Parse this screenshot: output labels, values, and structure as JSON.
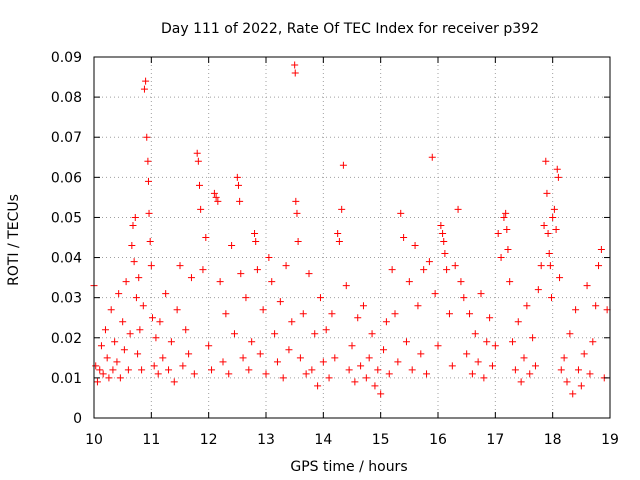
{
  "chart_data": {
    "type": "scatter",
    "title": "Day 111 of 2022, Rate Of TEC Index for receiver p392",
    "xlabel": "GPS time / hours",
    "ylabel": "ROTI / TECUs",
    "xlim": [
      10,
      19
    ],
    "ylim": [
      0,
      0.09
    ],
    "xticks": [
      10,
      11,
      12,
      13,
      14,
      15,
      16,
      17,
      18,
      19
    ],
    "yticks": [
      0,
      0.01,
      0.02,
      0.03,
      0.04,
      0.05,
      0.06,
      0.07,
      0.08,
      0.09
    ],
    "xtick_labels": [
      "10",
      "11",
      "12",
      "13",
      "14",
      "15",
      "16",
      "17",
      "18",
      "19"
    ],
    "ytick_labels": [
      "0",
      "0.01",
      "0.02",
      "0.03",
      "0.04",
      "0.05",
      "0.06",
      "0.07",
      "0.08",
      "0.09"
    ],
    "grid": true,
    "marker": "+",
    "series": [
      {
        "name": "ROTI",
        "color": "#ff0000",
        "points": [
          [
            10.0,
            0.033
          ],
          [
            10.03,
            0.013
          ],
          [
            10.06,
            0.009
          ],
          [
            10.1,
            0.012
          ],
          [
            10.13,
            0.018
          ],
          [
            10.16,
            0.011
          ],
          [
            10.2,
            0.022
          ],
          [
            10.23,
            0.015
          ],
          [
            10.26,
            0.01
          ],
          [
            10.3,
            0.027
          ],
          [
            10.33,
            0.012
          ],
          [
            10.36,
            0.019
          ],
          [
            10.4,
            0.014
          ],
          [
            10.43,
            0.031
          ],
          [
            10.46,
            0.01
          ],
          [
            10.5,
            0.024
          ],
          [
            10.53,
            0.017
          ],
          [
            10.56,
            0.034
          ],
          [
            10.6,
            0.012
          ],
          [
            10.63,
            0.021
          ],
          [
            10.66,
            0.043
          ],
          [
            10.68,
            0.048
          ],
          [
            10.7,
            0.039
          ],
          [
            10.72,
            0.05
          ],
          [
            10.74,
            0.03
          ],
          [
            10.76,
            0.016
          ],
          [
            10.78,
            0.035
          ],
          [
            10.8,
            0.022
          ],
          [
            10.83,
            0.012
          ],
          [
            10.86,
            0.028
          ],
          [
            10.88,
            0.082
          ],
          [
            10.9,
            0.084
          ],
          [
            10.92,
            0.07
          ],
          [
            10.94,
            0.064
          ],
          [
            10.95,
            0.059
          ],
          [
            10.96,
            0.051
          ],
          [
            10.98,
            0.044
          ],
          [
            11.0,
            0.038
          ],
          [
            11.02,
            0.025
          ],
          [
            11.05,
            0.013
          ],
          [
            11.08,
            0.02
          ],
          [
            11.12,
            0.011
          ],
          [
            11.15,
            0.024
          ],
          [
            11.2,
            0.015
          ],
          [
            11.25,
            0.031
          ],
          [
            11.3,
            0.012
          ],
          [
            11.35,
            0.019
          ],
          [
            11.4,
            0.009
          ],
          [
            11.45,
            0.027
          ],
          [
            11.5,
            0.038
          ],
          [
            11.55,
            0.013
          ],
          [
            11.6,
            0.022
          ],
          [
            11.65,
            0.016
          ],
          [
            11.7,
            0.035
          ],
          [
            11.75,
            0.011
          ],
          [
            11.8,
            0.066
          ],
          [
            11.82,
            0.064
          ],
          [
            11.84,
            0.058
          ],
          [
            11.86,
            0.052
          ],
          [
            11.9,
            0.037
          ],
          [
            11.95,
            0.045
          ],
          [
            12.0,
            0.018
          ],
          [
            12.05,
            0.012
          ],
          [
            12.1,
            0.056
          ],
          [
            12.13,
            0.055
          ],
          [
            12.16,
            0.054
          ],
          [
            12.2,
            0.034
          ],
          [
            12.25,
            0.014
          ],
          [
            12.3,
            0.026
          ],
          [
            12.35,
            0.011
          ],
          [
            12.4,
            0.043
          ],
          [
            12.45,
            0.021
          ],
          [
            12.5,
            0.06
          ],
          [
            12.52,
            0.058
          ],
          [
            12.54,
            0.054
          ],
          [
            12.56,
            0.036
          ],
          [
            12.6,
            0.015
          ],
          [
            12.65,
            0.03
          ],
          [
            12.7,
            0.012
          ],
          [
            12.75,
            0.019
          ],
          [
            12.8,
            0.046
          ],
          [
            12.82,
            0.044
          ],
          [
            12.85,
            0.037
          ],
          [
            12.9,
            0.016
          ],
          [
            12.95,
            0.027
          ],
          [
            13.0,
            0.011
          ],
          [
            13.05,
            0.04
          ],
          [
            13.1,
            0.034
          ],
          [
            13.15,
            0.021
          ],
          [
            13.2,
            0.014
          ],
          [
            13.25,
            0.029
          ],
          [
            13.3,
            0.01
          ],
          [
            13.35,
            0.038
          ],
          [
            13.4,
            0.017
          ],
          [
            13.45,
            0.024
          ],
          [
            13.5,
            0.088
          ],
          [
            13.51,
            0.086
          ],
          [
            13.52,
            0.054
          ],
          [
            13.54,
            0.051
          ],
          [
            13.56,
            0.044
          ],
          [
            13.6,
            0.015
          ],
          [
            13.65,
            0.026
          ],
          [
            13.7,
            0.011
          ],
          [
            13.75,
            0.036
          ],
          [
            13.8,
            0.012
          ],
          [
            13.85,
            0.021
          ],
          [
            13.9,
            0.008
          ],
          [
            13.95,
            0.03
          ],
          [
            14.0,
            0.014
          ],
          [
            14.05,
            0.022
          ],
          [
            14.1,
            0.01
          ],
          [
            14.15,
            0.026
          ],
          [
            14.2,
            0.015
          ],
          [
            14.25,
            0.046
          ],
          [
            14.28,
            0.044
          ],
          [
            14.32,
            0.052
          ],
          [
            14.35,
            0.063
          ],
          [
            14.4,
            0.033
          ],
          [
            14.45,
            0.012
          ],
          [
            14.5,
            0.018
          ],
          [
            14.55,
            0.009
          ],
          [
            14.6,
            0.025
          ],
          [
            14.65,
            0.013
          ],
          [
            14.7,
            0.028
          ],
          [
            14.75,
            0.01
          ],
          [
            14.8,
            0.015
          ],
          [
            14.85,
            0.021
          ],
          [
            14.9,
            0.008
          ],
          [
            14.95,
            0.012
          ],
          [
            15.0,
            0.006
          ],
          [
            15.05,
            0.017
          ],
          [
            15.1,
            0.024
          ],
          [
            15.15,
            0.011
          ],
          [
            15.2,
            0.037
          ],
          [
            15.25,
            0.026
          ],
          [
            15.3,
            0.014
          ],
          [
            15.35,
            0.051
          ],
          [
            15.4,
            0.045
          ],
          [
            15.45,
            0.019
          ],
          [
            15.5,
            0.034
          ],
          [
            15.55,
            0.012
          ],
          [
            15.6,
            0.043
          ],
          [
            15.65,
            0.028
          ],
          [
            15.7,
            0.016
          ],
          [
            15.75,
            0.037
          ],
          [
            15.8,
            0.011
          ],
          [
            15.85,
            0.039
          ],
          [
            15.9,
            0.065
          ],
          [
            15.95,
            0.031
          ],
          [
            16.0,
            0.018
          ],
          [
            16.05,
            0.048
          ],
          [
            16.08,
            0.046
          ],
          [
            16.1,
            0.044
          ],
          [
            16.12,
            0.041
          ],
          [
            16.15,
            0.037
          ],
          [
            16.2,
            0.026
          ],
          [
            16.25,
            0.013
          ],
          [
            16.3,
            0.038
          ],
          [
            16.35,
            0.052
          ],
          [
            16.4,
            0.034
          ],
          [
            16.45,
            0.03
          ],
          [
            16.5,
            0.016
          ],
          [
            16.55,
            0.026
          ],
          [
            16.6,
            0.011
          ],
          [
            16.65,
            0.021
          ],
          [
            16.7,
            0.014
          ],
          [
            16.75,
            0.031
          ],
          [
            16.8,
            0.01
          ],
          [
            16.85,
            0.019
          ],
          [
            16.9,
            0.025
          ],
          [
            16.95,
            0.013
          ],
          [
            17.0,
            0.018
          ],
          [
            17.05,
            0.046
          ],
          [
            17.1,
            0.04
          ],
          [
            17.15,
            0.05
          ],
          [
            17.18,
            0.051
          ],
          [
            17.2,
            0.047
          ],
          [
            17.22,
            0.042
          ],
          [
            17.25,
            0.034
          ],
          [
            17.3,
            0.019
          ],
          [
            17.35,
            0.012
          ],
          [
            17.4,
            0.024
          ],
          [
            17.45,
            0.009
          ],
          [
            17.5,
            0.015
          ],
          [
            17.55,
            0.028
          ],
          [
            17.6,
            0.011
          ],
          [
            17.65,
            0.02
          ],
          [
            17.7,
            0.013
          ],
          [
            17.75,
            0.032
          ],
          [
            17.8,
            0.038
          ],
          [
            17.85,
            0.048
          ],
          [
            17.88,
            0.064
          ],
          [
            17.9,
            0.056
          ],
          [
            17.92,
            0.046
          ],
          [
            17.94,
            0.041
          ],
          [
            17.96,
            0.038
          ],
          [
            17.98,
            0.03
          ],
          [
            18.0,
            0.05
          ],
          [
            18.03,
            0.052
          ],
          [
            18.06,
            0.047
          ],
          [
            18.08,
            0.062
          ],
          [
            18.1,
            0.06
          ],
          [
            18.12,
            0.035
          ],
          [
            18.15,
            0.012
          ],
          [
            18.2,
            0.015
          ],
          [
            18.25,
            0.009
          ],
          [
            18.3,
            0.021
          ],
          [
            18.35,
            0.006
          ],
          [
            18.4,
            0.027
          ],
          [
            18.45,
            0.012
          ],
          [
            18.5,
            0.008
          ],
          [
            18.55,
            0.016
          ],
          [
            18.6,
            0.033
          ],
          [
            18.65,
            0.011
          ],
          [
            18.7,
            0.019
          ],
          [
            18.75,
            0.028
          ],
          [
            18.8,
            0.038
          ],
          [
            18.85,
            0.042
          ],
          [
            18.9,
            0.01
          ],
          [
            18.95,
            0.027
          ]
        ]
      }
    ]
  }
}
